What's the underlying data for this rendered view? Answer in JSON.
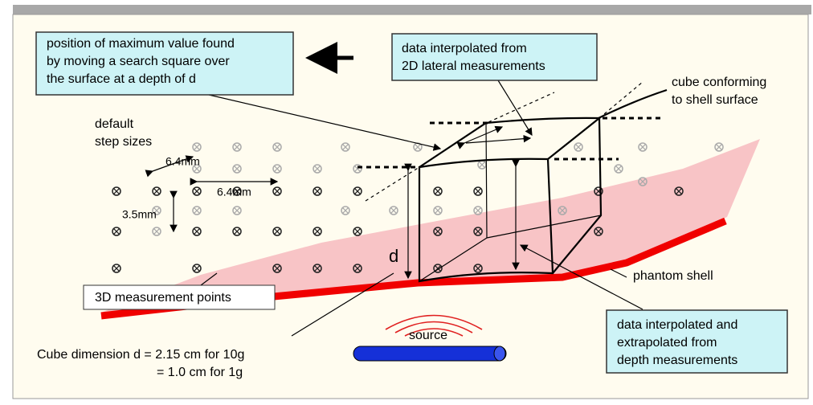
{
  "callouts": {
    "search_square": [
      "position of maximum value found",
      "by moving a search square over",
      "the surface at a depth of d"
    ],
    "lateral": [
      "data interpolated from",
      "2D lateral measurements"
    ],
    "cube_conforming": [
      "cube conforming",
      "to shell surface"
    ],
    "step_sizes": [
      "default",
      "step sizes"
    ],
    "step_x": "6.4mm",
    "step_y": "6.4mm",
    "step_z": "3.5mm",
    "cube_d": "d",
    "points": "3D measurement points",
    "shell": "phantom shell",
    "source": "source",
    "depth": [
      "data interpolated and",
      "extrapolated from",
      "depth measurements"
    ],
    "dimension": [
      "Cube dimension d = 2.15 cm for 10g",
      "= 1.0 cm for 1g"
    ]
  }
}
